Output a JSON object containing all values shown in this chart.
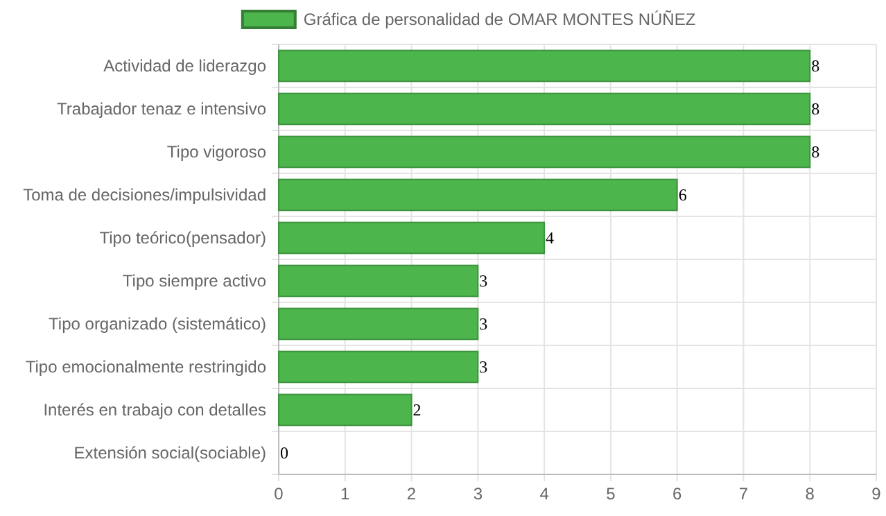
{
  "chart_data": {
    "type": "bar",
    "orientation": "horizontal",
    "categories": [
      "Actividad de liderazgo",
      "Trabajador tenaz e intensivo",
      "Tipo vigoroso",
      "Toma de decisiones/impulsividad",
      "Tipo teórico(pensador)",
      "Tipo siempre activo",
      "Tipo organizado (sistemático)",
      "Tipo emocionalmente restringido",
      "Interés en trabajo con detalles",
      "Extensión social(sociable)"
    ],
    "series": [
      {
        "name": "Gráfica de personalidad de OMAR MONTES NÚÑEZ",
        "color": "#4cb64c",
        "values": [
          8,
          8,
          8,
          6,
          4,
          3,
          3,
          3,
          2,
          0
        ]
      }
    ],
    "xlim": [
      0,
      9
    ],
    "xticks": [
      0,
      1,
      2,
      3,
      4,
      5,
      6,
      7,
      8,
      9
    ],
    "grid": true,
    "legend": "top",
    "data_labels": true
  }
}
